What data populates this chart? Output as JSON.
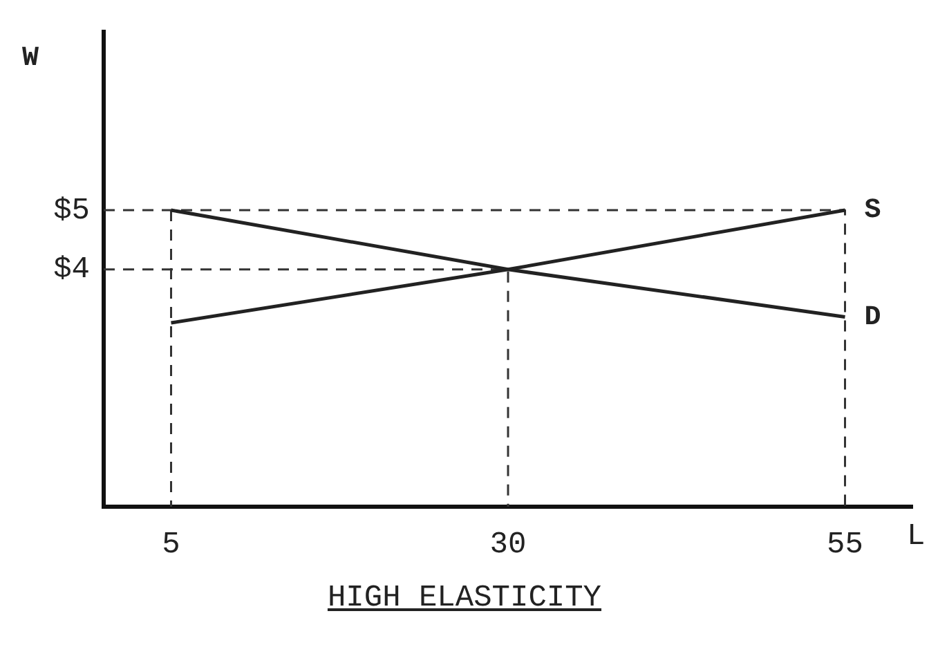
{
  "chart_data": {
    "type": "line",
    "title": "HIGH ELASTICITY",
    "xlabel": "L",
    "ylabel": "W",
    "xlim": [
      0,
      60
    ],
    "ylim": [
      0,
      8
    ],
    "xticks": [
      5,
      30,
      55
    ],
    "yticks": [
      {
        "value": 4,
        "label": "$4"
      },
      {
        "value": 5,
        "label": "$5"
      }
    ],
    "grid": false,
    "legend": false,
    "marker": "none",
    "series": [
      {
        "name": "S",
        "color": "#222222",
        "x": [
          5,
          30,
          55
        ],
        "values": [
          3.1,
          4,
          5
        ]
      },
      {
        "name": "D",
        "color": "#222222",
        "x": [
          5,
          30,
          55
        ],
        "values": [
          5,
          4,
          3.2
        ]
      },
      {
        "color": "#333333",
        "line_style": "dashed",
        "x": [
          0,
          55,
          55
        ],
        "values": [
          5,
          5,
          0
        ]
      },
      {
        "color": "#333333",
        "line_style": "dashed",
        "x": [
          5,
          5
        ],
        "values": [
          5,
          0
        ]
      },
      {
        "color": "#333333",
        "line_style": "dashed",
        "x": [
          0,
          30,
          30
        ],
        "values": [
          4,
          4,
          0
        ]
      }
    ]
  }
}
